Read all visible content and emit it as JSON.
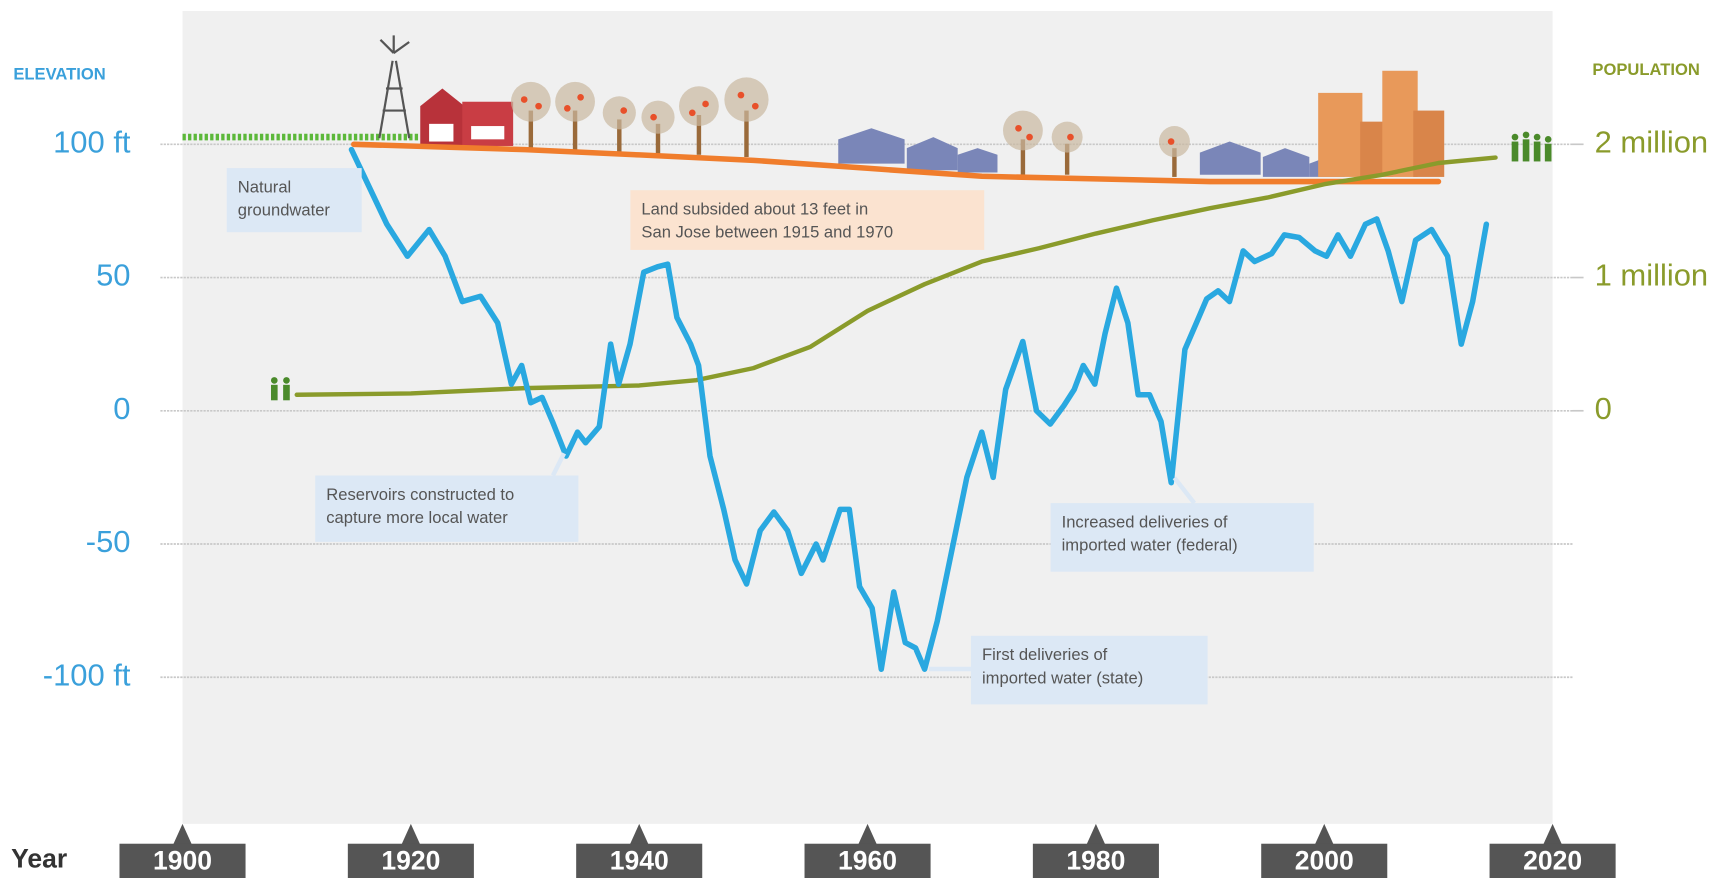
{
  "chart_data": {
    "type": "line",
    "ylabel": "ELEVATION",
    "y2label": "POPULATION",
    "xlabel": "Year",
    "xlim": [
      1900,
      2020
    ],
    "xticks": [
      1900,
      1920,
      1940,
      1960,
      1980,
      2000,
      2020
    ],
    "ylim": [
      -155,
      150
    ],
    "yticks": [
      {
        "value": 100,
        "label": "100 ft"
      },
      50,
      0,
      -50,
      {
        "value": -100,
        "label": "-100 ft"
      }
    ],
    "y2lim": [
      -3100000,
      3000000
    ],
    "y2ticks": [
      0,
      {
        "value": 1000000,
        "label": "1 million"
      },
      {
        "value": 2000000,
        "label": "2 million"
      }
    ],
    "grid": true,
    "series": [
      {
        "color": "#f07d2c",
        "x": [
          1915,
          1930,
          1940,
          1950,
          1960,
          1970,
          1980,
          1990,
          2010
        ],
        "values": [
          100,
          98,
          96,
          94,
          91,
          88,
          87,
          86,
          86
        ]
      },
      {
        "color": "#8a9b2b",
        "axis": "y2",
        "x": [
          1910,
          1920,
          1930,
          1940,
          1945,
          1950,
          1955,
          1960,
          1965,
          1970,
          1975,
          1980,
          1985,
          1990,
          1995,
          2000,
          2005,
          2010,
          2015
        ],
        "values": [
          120000,
          130000,
          170000,
          190000,
          230000,
          320000,
          480000,
          750000,
          950000,
          1120000,
          1220000,
          1330000,
          1430000,
          1520000,
          1600000,
          1700000,
          1770000,
          1860000,
          1900000
        ]
      },
      {
        "color": "#29a8e0",
        "x": [
          1914.8,
          1917.9,
          1919.7,
          1921.6,
          1923,
          1924.5,
          1926.1,
          1927.6,
          1928.8,
          1929.7,
          1930.5,
          1931.5,
          1932.4,
          1933.6,
          1934.6,
          1935.3,
          1936.5,
          1937.5,
          1938.2,
          1939.2,
          1940.4,
          1941.6,
          1942.5,
          1943.3,
          1944.5,
          1945.2,
          1946.2,
          1947.4,
          1948.4,
          1949.4,
          1950.6,
          1951.8,
          1953,
          1954.2,
          1955.5,
          1956.1,
          1957.6,
          1958.4,
          1959.3,
          1960.4,
          1961.2,
          1962.3,
          1963.3,
          1964.2,
          1965,
          1966.1,
          1967.5,
          1968.7,
          1970,
          1971,
          1972.1,
          1973.6,
          1974.8,
          1976,
          1977.2,
          1978.1,
          1978.9,
          1979.9,
          1980.8,
          1981.8,
          1982.8,
          1983.7,
          1984.7,
          1985.7,
          1986.6,
          1987.8,
          1988.8,
          1989.7,
          1990.7,
          1991.7,
          1992.9,
          1993.9,
          1995.4,
          1996.5,
          1997.8,
          1999.2,
          2000.2,
          2001.2,
          2002.3,
          2003.6,
          2004.6,
          2005.6,
          2006.8,
          2008,
          2009.4,
          2010.8,
          2012,
          2013,
          2014.2
        ],
        "values": [
          98,
          70,
          58,
          68,
          58,
          41,
          43,
          33,
          10,
          17,
          3,
          5,
          -4,
          -17,
          -8,
          -12,
          -6,
          25,
          10,
          25,
          52,
          54,
          55,
          35,
          25,
          17,
          -17,
          -37,
          -56,
          -65,
          -45,
          -38,
          -45,
          -61,
          -50,
          -56,
          -37,
          -37,
          -66,
          -74,
          -97,
          -68,
          -87,
          -89,
          -97,
          -79,
          -50,
          -25,
          -8,
          -25,
          8,
          26,
          0,
          -5,
          2,
          8,
          17,
          10,
          29,
          46,
          33,
          6,
          6,
          -4,
          -27,
          23,
          33,
          42,
          45,
          41,
          60,
          56,
          59,
          66,
          65,
          60,
          58,
          66,
          58,
          70,
          72,
          60,
          41,
          64,
          68,
          58,
          25,
          41,
          70
        ]
      }
    ],
    "annotations": [
      {
        "lines": [
          "Natural",
          "groundwater"
        ]
      },
      {
        "lines": [
          "Land subsided about 13 feet in",
          "San Jose between 1915 and 1970"
        ]
      },
      {
        "lines": [
          "Reservoirs constructed to",
          "capture more local water"
        ]
      },
      {
        "lines": [
          "Increased deliveries of",
          "imported water (federal)"
        ]
      },
      {
        "lines": [
          "First deliveries of",
          "imported water (state)"
        ]
      }
    ]
  }
}
